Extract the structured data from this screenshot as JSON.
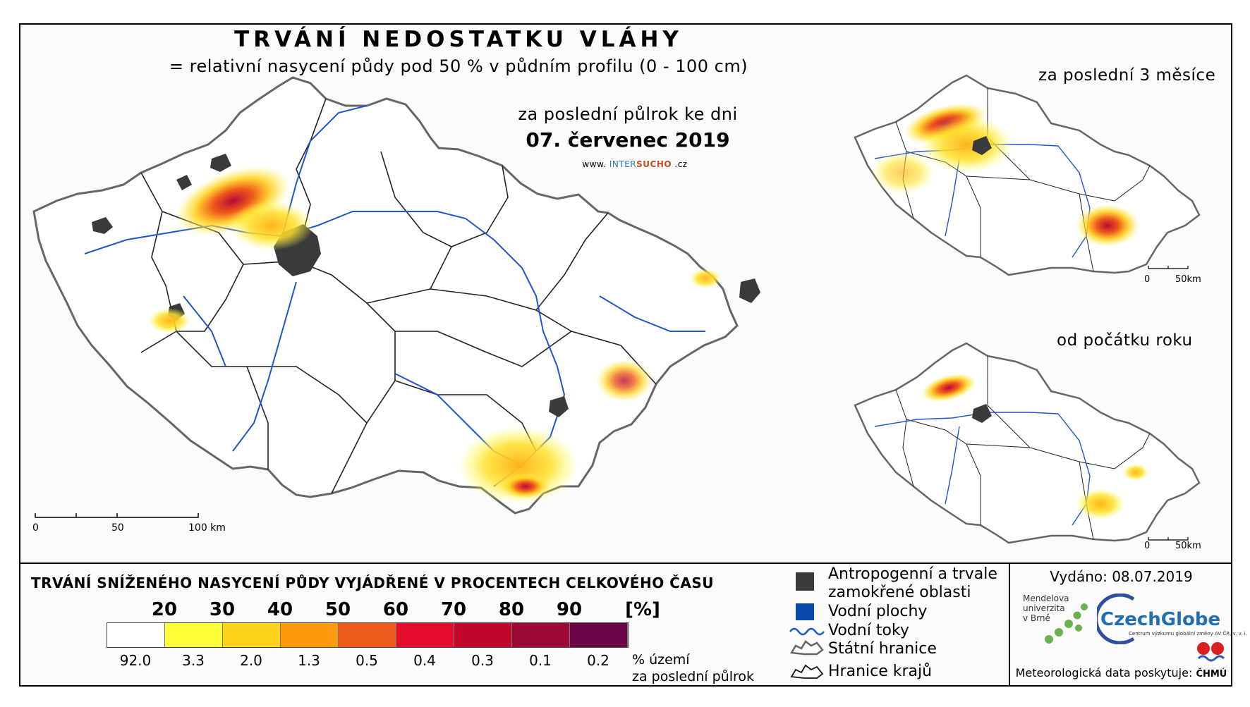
{
  "header": {
    "title": "TRVÁNÍ NEDOSTATKU VLÁHY",
    "subtitle": "= relativní nasycení půdy pod 50 % v půdním profilu (0 - 100 cm)",
    "period_label": "za poslední půlrok ke dni",
    "date": "07. červenec 2019",
    "web_prefix": "www.",
    "web_inter": "INTER",
    "web_sucho": "SUCHO",
    "web_suffix": ".cz"
  },
  "main_map": {
    "scale": {
      "zero": "0",
      "mid": "50",
      "end": "100 km"
    }
  },
  "insets": [
    {
      "label": "za poslední 3 měsíce",
      "scale": {
        "zero": "0",
        "end": "50km"
      }
    },
    {
      "label": "od počátku roku",
      "scale": {
        "zero": "0",
        "end": "50km"
      }
    }
  ],
  "legend": {
    "title": "TRVÁNÍ SNÍŽENÉHO NASYCENÍ PŮDY VYJÁDŘENÉ V PROCENTECH CELKOVÉHO ČASU",
    "thresholds": [
      "20",
      "30",
      "40",
      "50",
      "60",
      "70",
      "80",
      "90",
      "[%]"
    ],
    "colors": [
      "#ffffff",
      "#ffff3a",
      "#ffd21e",
      "#ff9a0e",
      "#ec5a1c",
      "#e40e2c",
      "#c0082c",
      "#9a0a34",
      "#6b0545"
    ],
    "shares": [
      "92.0",
      "3.3",
      "2.0",
      "1.3",
      "0.5",
      "0.4",
      "0.3",
      "0.1",
      "0.2"
    ],
    "unit_line1": "% území",
    "unit_line2": "za poslední půlrok"
  },
  "key": {
    "urban_line1": "Antropogenní a trvale",
    "urban_line2": "zamokřené oblasti",
    "water": "Vodní plochy",
    "rivers": "Vodní toky",
    "border": "Státní hranice",
    "regions": "Hranice krajů",
    "urban_color": "#3a3a3a",
    "water_color": "#0a4aa8",
    "river_color": "#1f55d0"
  },
  "footer": {
    "issued": "Vydáno: 08.07.2019",
    "mendel_1": "Mendelova",
    "mendel_2": "univerzita",
    "mendel_3": "v Brně",
    "czechglobe": "CzechGlobe",
    "czechglobe_sub": "Centrum výzkumu globální změny AV ČR, v. v. i.",
    "meteo": "Meteorologická data poskytuje:",
    "chmu": "ČHMÚ"
  }
}
